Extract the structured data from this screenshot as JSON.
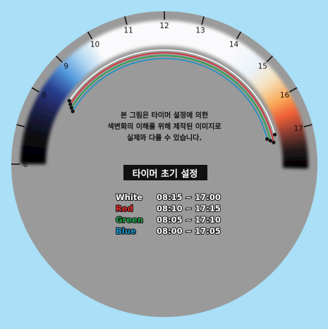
{
  "dial": {
    "hours": [
      {
        "label": "6"
      },
      {
        "label": "7"
      },
      {
        "label": "8"
      },
      {
        "label": "9"
      },
      {
        "label": "10"
      },
      {
        "label": "11"
      },
      {
        "label": "12"
      },
      {
        "label": "13"
      },
      {
        "label": "14"
      },
      {
        "label": "15"
      },
      {
        "label": "16"
      },
      {
        "label": "17"
      }
    ]
  },
  "notice": {
    "lines": [
      "본 그림은 타이머 설정에 의한",
      "색변화의 이해를 위해 제작된 이미지로",
      "실제와 다를 수 있습니다."
    ]
  },
  "heading": "타이머 초기 설정",
  "timers": [
    {
      "channel": "White",
      "range": "08:15 ~ 17:00",
      "color": "#ffffff",
      "start": "08:15",
      "end": "17:00"
    },
    {
      "channel": "Red",
      "range": "08:10 ~ 17:15",
      "color": "#e0262b",
      "start": "08:10",
      "end": "17:15"
    },
    {
      "channel": "Green",
      "range": "08:05 ~ 17:10",
      "color": "#1fa34a",
      "start": "08:05",
      "end": "17:10"
    },
    {
      "channel": "Blue",
      "range": "08:00 ~ 17:05",
      "color": "#1a8fc9",
      "start": "08:00",
      "end": "17:05"
    }
  ],
  "colors": {
    "background": "#a9dff7",
    "dial": "#9a9a9a",
    "heading_bg": "#111111"
  }
}
